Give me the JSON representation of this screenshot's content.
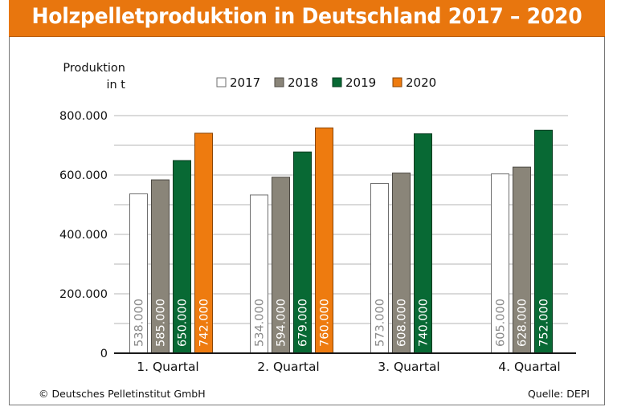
{
  "header": {
    "title": "Holzpelletproduktion in Deutschland 2017 – 2020"
  },
  "footer": {
    "copyright": "© Deutsches Pelletinstitut GmbH",
    "source": "Quelle: DEPI"
  },
  "colors": {
    "header_bg": "#e8760e",
    "series": {
      "2017": {
        "fill": "#ffffff",
        "stroke": "#6e6e6e",
        "label": "#8a8a8a"
      },
      "2018": {
        "fill": "#8a8579",
        "stroke": "#4d4a44",
        "label": "#ffffff"
      },
      "2019": {
        "fill": "#086934",
        "stroke": "#043a1d",
        "label": "#ffffff"
      },
      "2020": {
        "fill": "#ee7b0f",
        "stroke": "#8a4505",
        "label": "#ffffff"
      }
    },
    "grid": "#b4b4b4",
    "axis": "#1a1a1a"
  },
  "chart_data": {
    "type": "bar",
    "title": "Holzpelletproduktion in Deutschland 2017 – 2020",
    "xlabel": "",
    "ylabel": [
      "Produktion",
      "in t"
    ],
    "ylim": [
      0,
      800000
    ],
    "yticks": [
      0,
      200000,
      400000,
      600000,
      800000
    ],
    "ytick_labels": [
      "0",
      "200.000",
      "400.000",
      "600.000",
      "800.000"
    ],
    "minor_grid_step": 100000,
    "grid": true,
    "legend": {
      "placement": "top",
      "entries": [
        "2017",
        "2018",
        "2019",
        "2020"
      ]
    },
    "categories": [
      "1. Quartal",
      "2. Quartal",
      "3. Quartal",
      "4. Quartal"
    ],
    "series": [
      {
        "name": "2017",
        "values": [
          538000,
          534000,
          573000,
          605000
        ],
        "labels": [
          "538.000",
          "534.000",
          "573.000",
          "605.000"
        ]
      },
      {
        "name": "2018",
        "values": [
          585000,
          594000,
          608000,
          628000
        ],
        "labels": [
          "585.000",
          "594.000",
          "608.000",
          "628.000"
        ]
      },
      {
        "name": "2019",
        "values": [
          650000,
          679000,
          740000,
          752000
        ],
        "labels": [
          "650.000",
          "679.000",
          "740.000",
          "752.000"
        ]
      },
      {
        "name": "2020",
        "values": [
          742000,
          760000,
          null,
          null
        ],
        "labels": [
          "742.000",
          "760.000",
          null,
          null
        ]
      }
    ]
  }
}
